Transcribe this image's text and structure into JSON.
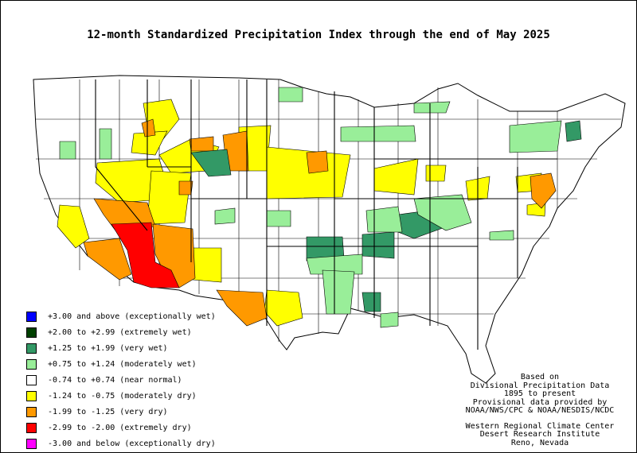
{
  "title": "12-month Standardized Precipitation Index through the end of May 2025",
  "legend": [
    {
      "label": "+3.00 and above (exceptionally wet)",
      "color": "#0000ff"
    },
    {
      "label": "+2.00 to +2.99 (extremely wet)",
      "color": "#004000"
    },
    {
      "label": "+1.25 to +1.99 (very wet)",
      "color": "#339966"
    },
    {
      "label": "+0.75 to +1.24 (moderately wet)",
      "color": "#99ee99"
    },
    {
      "label": "-0.74 to +0.74 (near normal)",
      "color": "#ffffff"
    },
    {
      "label": "-1.24 to -0.75 (moderately dry)",
      "color": "#ffff00"
    },
    {
      "label": "-1.99 to -1.25 (very dry)",
      "color": "#ff9900"
    },
    {
      "label": "-2.99 to -2.00 (extremely dry)",
      "color": "#ff0000"
    },
    {
      "label": "-3.00 and below (exceptionally dry)",
      "color": "#ff00ff"
    }
  ],
  "credits": {
    "line1": "Based on",
    "line2": "Divisional Precipitation Data",
    "line3": "1895 to present",
    "line4": "Provisional data provided by",
    "line5": "NOAA/NWS/CPC & NOAA/NESDIS/NCDC",
    "line6": "Western Regional Climate Center",
    "line7": "Desert Research Institute",
    "line8": "Reno, Nevada"
  }
}
